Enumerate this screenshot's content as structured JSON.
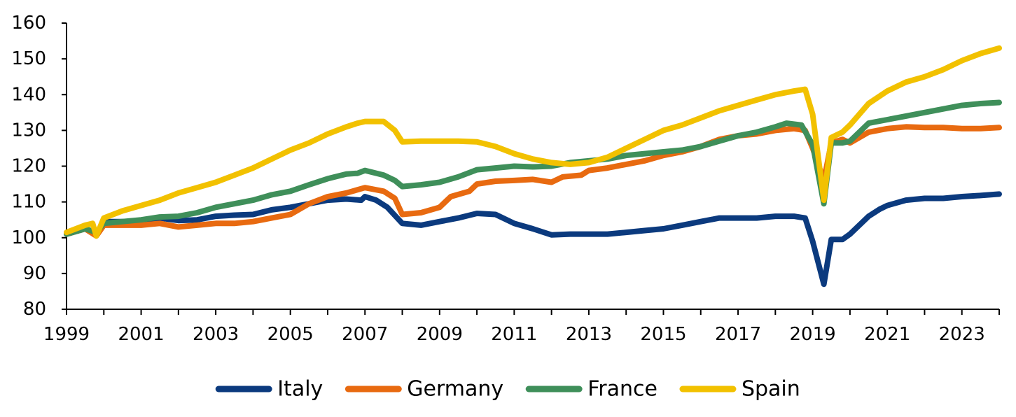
{
  "chart_data": {
    "type": "line",
    "title": "",
    "xlabel": "",
    "ylabel": "",
    "xlim": [
      1999,
      2024
    ],
    "ylim": [
      80,
      160
    ],
    "x_ticks": [
      "1999",
      "2001",
      "2003",
      "2005",
      "2007",
      "2009",
      "2011",
      "2013",
      "2015",
      "2017",
      "2019",
      "2021",
      "2023"
    ],
    "y_ticks": [
      "80",
      "90",
      "100",
      "110",
      "120",
      "130",
      "140",
      "150",
      "160"
    ],
    "grid": false,
    "legend_position": "bottom",
    "series": [
      {
        "name": "Italy",
        "color": "#0b3a7e",
        "points": [
          [
            1999.0,
            101.0
          ],
          [
            1999.5,
            102.5
          ],
          [
            1999.8,
            101.0
          ],
          [
            2000.0,
            104.5
          ],
          [
            2000.5,
            104.5
          ],
          [
            2001.0,
            104.5
          ],
          [
            2001.5,
            105.5
          ],
          [
            2002.0,
            104.8
          ],
          [
            2002.5,
            105.0
          ],
          [
            2003.0,
            106.0
          ],
          [
            2003.5,
            106.3
          ],
          [
            2004.0,
            106.5
          ],
          [
            2004.5,
            107.8
          ],
          [
            2005.0,
            108.5
          ],
          [
            2005.5,
            109.5
          ],
          [
            2006.0,
            110.5
          ],
          [
            2006.5,
            110.8
          ],
          [
            2006.9,
            110.5
          ],
          [
            2007.0,
            111.5
          ],
          [
            2007.3,
            110.5
          ],
          [
            2007.6,
            108.5
          ],
          [
            2008.0,
            104.0
          ],
          [
            2008.5,
            103.5
          ],
          [
            2009.0,
            104.5
          ],
          [
            2009.5,
            105.5
          ],
          [
            2010.0,
            106.8
          ],
          [
            2010.5,
            106.5
          ],
          [
            2011.0,
            104.0
          ],
          [
            2011.5,
            102.5
          ],
          [
            2012.0,
            100.8
          ],
          [
            2012.5,
            101.0
          ],
          [
            2013.0,
            101.0
          ],
          [
            2013.5,
            101.0
          ],
          [
            2014.0,
            101.5
          ],
          [
            2014.5,
            102.0
          ],
          [
            2015.0,
            102.5
          ],
          [
            2015.5,
            103.5
          ],
          [
            2016.0,
            104.5
          ],
          [
            2016.5,
            105.5
          ],
          [
            2017.0,
            105.5
          ],
          [
            2017.5,
            105.5
          ],
          [
            2018.0,
            106.0
          ],
          [
            2018.5,
            106.0
          ],
          [
            2018.8,
            105.5
          ],
          [
            2019.0,
            99.0
          ],
          [
            2019.3,
            87.0
          ],
          [
            2019.5,
            99.5
          ],
          [
            2019.8,
            99.5
          ],
          [
            2020.0,
            101.0
          ],
          [
            2020.5,
            106.0
          ],
          [
            2020.8,
            108.0
          ],
          [
            2021.0,
            109.0
          ],
          [
            2021.5,
            110.5
          ],
          [
            2022.0,
            111.0
          ],
          [
            2022.5,
            111.0
          ],
          [
            2023.0,
            111.5
          ],
          [
            2023.5,
            111.8
          ],
          [
            2024.0,
            112.2
          ]
        ]
      },
      {
        "name": "Germany",
        "color": "#e86a10",
        "points": [
          [
            1999.0,
            101.0
          ],
          [
            1999.5,
            102.5
          ],
          [
            1999.8,
            100.5
          ],
          [
            2000.0,
            103.5
          ],
          [
            2000.5,
            103.5
          ],
          [
            2001.0,
            103.5
          ],
          [
            2001.5,
            104.0
          ],
          [
            2002.0,
            103.0
          ],
          [
            2002.5,
            103.5
          ],
          [
            2003.0,
            104.0
          ],
          [
            2003.5,
            104.0
          ],
          [
            2004.0,
            104.5
          ],
          [
            2004.5,
            105.5
          ],
          [
            2005.0,
            106.5
          ],
          [
            2005.5,
            109.5
          ],
          [
            2006.0,
            111.5
          ],
          [
            2006.5,
            112.5
          ],
          [
            2007.0,
            114.0
          ],
          [
            2007.5,
            113.0
          ],
          [
            2007.8,
            111.0
          ],
          [
            2008.0,
            106.5
          ],
          [
            2008.5,
            107.0
          ],
          [
            2009.0,
            108.5
          ],
          [
            2009.3,
            111.5
          ],
          [
            2009.8,
            113.0
          ],
          [
            2010.0,
            115.0
          ],
          [
            2010.5,
            115.8
          ],
          [
            2011.0,
            116.0
          ],
          [
            2011.5,
            116.3
          ],
          [
            2012.0,
            115.5
          ],
          [
            2012.3,
            117.0
          ],
          [
            2012.8,
            117.5
          ],
          [
            2013.0,
            118.8
          ],
          [
            2013.5,
            119.5
          ],
          [
            2014.0,
            120.5
          ],
          [
            2014.5,
            121.5
          ],
          [
            2015.0,
            123.0
          ],
          [
            2015.5,
            124.0
          ],
          [
            2016.0,
            125.5
          ],
          [
            2016.5,
            127.5
          ],
          [
            2017.0,
            128.5
          ],
          [
            2017.5,
            129.0
          ],
          [
            2018.0,
            130.0
          ],
          [
            2018.5,
            130.5
          ],
          [
            2018.8,
            130.0
          ],
          [
            2019.0,
            125.0
          ],
          [
            2019.3,
            116.0
          ],
          [
            2019.5,
            126.5
          ],
          [
            2019.8,
            127.5
          ],
          [
            2020.0,
            126.5
          ],
          [
            2020.5,
            129.5
          ],
          [
            2021.0,
            130.5
          ],
          [
            2021.5,
            131.0
          ],
          [
            2022.0,
            130.8
          ],
          [
            2022.5,
            130.8
          ],
          [
            2023.0,
            130.5
          ],
          [
            2023.5,
            130.5
          ],
          [
            2024.0,
            130.8
          ]
        ]
      },
      {
        "name": "France",
        "color": "#3f8f5a",
        "points": [
          [
            1999.0,
            101.0
          ],
          [
            1999.5,
            102.5
          ],
          [
            1999.8,
            101.5
          ],
          [
            2000.0,
            104.0
          ],
          [
            2000.5,
            104.5
          ],
          [
            2001.0,
            105.0
          ],
          [
            2001.5,
            105.8
          ],
          [
            2002.0,
            106.0
          ],
          [
            2002.5,
            107.0
          ],
          [
            2003.0,
            108.5
          ],
          [
            2003.5,
            109.5
          ],
          [
            2004.0,
            110.5
          ],
          [
            2004.5,
            112.0
          ],
          [
            2005.0,
            113.0
          ],
          [
            2005.5,
            114.8
          ],
          [
            2006.0,
            116.5
          ],
          [
            2006.5,
            117.8
          ],
          [
            2006.8,
            118.0
          ],
          [
            2007.0,
            118.8
          ],
          [
            2007.5,
            117.5
          ],
          [
            2007.8,
            116.0
          ],
          [
            2008.0,
            114.3
          ],
          [
            2008.5,
            114.8
          ],
          [
            2009.0,
            115.5
          ],
          [
            2009.5,
            117.0
          ],
          [
            2010.0,
            119.0
          ],
          [
            2010.5,
            119.5
          ],
          [
            2011.0,
            120.0
          ],
          [
            2011.5,
            119.8
          ],
          [
            2012.0,
            120.0
          ],
          [
            2012.5,
            121.0
          ],
          [
            2013.0,
            121.5
          ],
          [
            2013.5,
            122.0
          ],
          [
            2014.0,
            123.0
          ],
          [
            2014.5,
            123.5
          ],
          [
            2015.0,
            124.0
          ],
          [
            2015.5,
            124.5
          ],
          [
            2016.0,
            125.5
          ],
          [
            2016.5,
            127.0
          ],
          [
            2017.0,
            128.5
          ],
          [
            2017.5,
            129.5
          ],
          [
            2018.0,
            131.0
          ],
          [
            2018.3,
            132.0
          ],
          [
            2018.7,
            131.5
          ],
          [
            2019.0,
            126.0
          ],
          [
            2019.3,
            109.5
          ],
          [
            2019.5,
            126.5
          ],
          [
            2019.8,
            126.5
          ],
          [
            2020.0,
            127.0
          ],
          [
            2020.5,
            132.0
          ],
          [
            2021.0,
            133.0
          ],
          [
            2021.5,
            134.0
          ],
          [
            2022.0,
            135.0
          ],
          [
            2022.5,
            136.0
          ],
          [
            2023.0,
            137.0
          ],
          [
            2023.5,
            137.5
          ],
          [
            2024.0,
            137.8
          ]
        ]
      },
      {
        "name": "Spain",
        "color": "#f2c100",
        "points": [
          [
            1999.0,
            101.5
          ],
          [
            1999.5,
            103.5
          ],
          [
            1999.7,
            104.0
          ],
          [
            1999.8,
            100.5
          ],
          [
            2000.0,
            105.5
          ],
          [
            2000.5,
            107.5
          ],
          [
            2001.0,
            109.0
          ],
          [
            2001.5,
            110.5
          ],
          [
            2002.0,
            112.5
          ],
          [
            2002.5,
            114.0
          ],
          [
            2003.0,
            115.5
          ],
          [
            2003.5,
            117.5
          ],
          [
            2004.0,
            119.5
          ],
          [
            2004.5,
            122.0
          ],
          [
            2005.0,
            124.5
          ],
          [
            2005.5,
            126.5
          ],
          [
            2006.0,
            129.0
          ],
          [
            2006.5,
            131.0
          ],
          [
            2006.8,
            132.0
          ],
          [
            2007.0,
            132.5
          ],
          [
            2007.5,
            132.5
          ],
          [
            2007.8,
            130.0
          ],
          [
            2008.0,
            126.8
          ],
          [
            2008.5,
            127.0
          ],
          [
            2009.0,
            127.0
          ],
          [
            2009.5,
            127.0
          ],
          [
            2010.0,
            126.8
          ],
          [
            2010.5,
            125.5
          ],
          [
            2011.0,
            123.5
          ],
          [
            2011.5,
            122.0
          ],
          [
            2012.0,
            121.0
          ],
          [
            2012.5,
            120.5
          ],
          [
            2013.0,
            121.0
          ],
          [
            2013.5,
            122.5
          ],
          [
            2014.0,
            125.0
          ],
          [
            2014.5,
            127.5
          ],
          [
            2015.0,
            130.0
          ],
          [
            2015.5,
            131.5
          ],
          [
            2016.0,
            133.5
          ],
          [
            2016.5,
            135.5
          ],
          [
            2017.0,
            137.0
          ],
          [
            2017.5,
            138.5
          ],
          [
            2018.0,
            140.0
          ],
          [
            2018.5,
            141.0
          ],
          [
            2018.8,
            141.5
          ],
          [
            2019.0,
            134.5
          ],
          [
            2019.3,
            110.5
          ],
          [
            2019.5,
            128.0
          ],
          [
            2019.8,
            129.5
          ],
          [
            2020.0,
            131.5
          ],
          [
            2020.5,
            137.5
          ],
          [
            2021.0,
            141.0
          ],
          [
            2021.5,
            143.5
          ],
          [
            2022.0,
            145.0
          ],
          [
            2022.5,
            147.0
          ],
          [
            2023.0,
            149.5
          ],
          [
            2023.5,
            151.5
          ],
          [
            2024.0,
            153.0
          ]
        ]
      }
    ]
  }
}
